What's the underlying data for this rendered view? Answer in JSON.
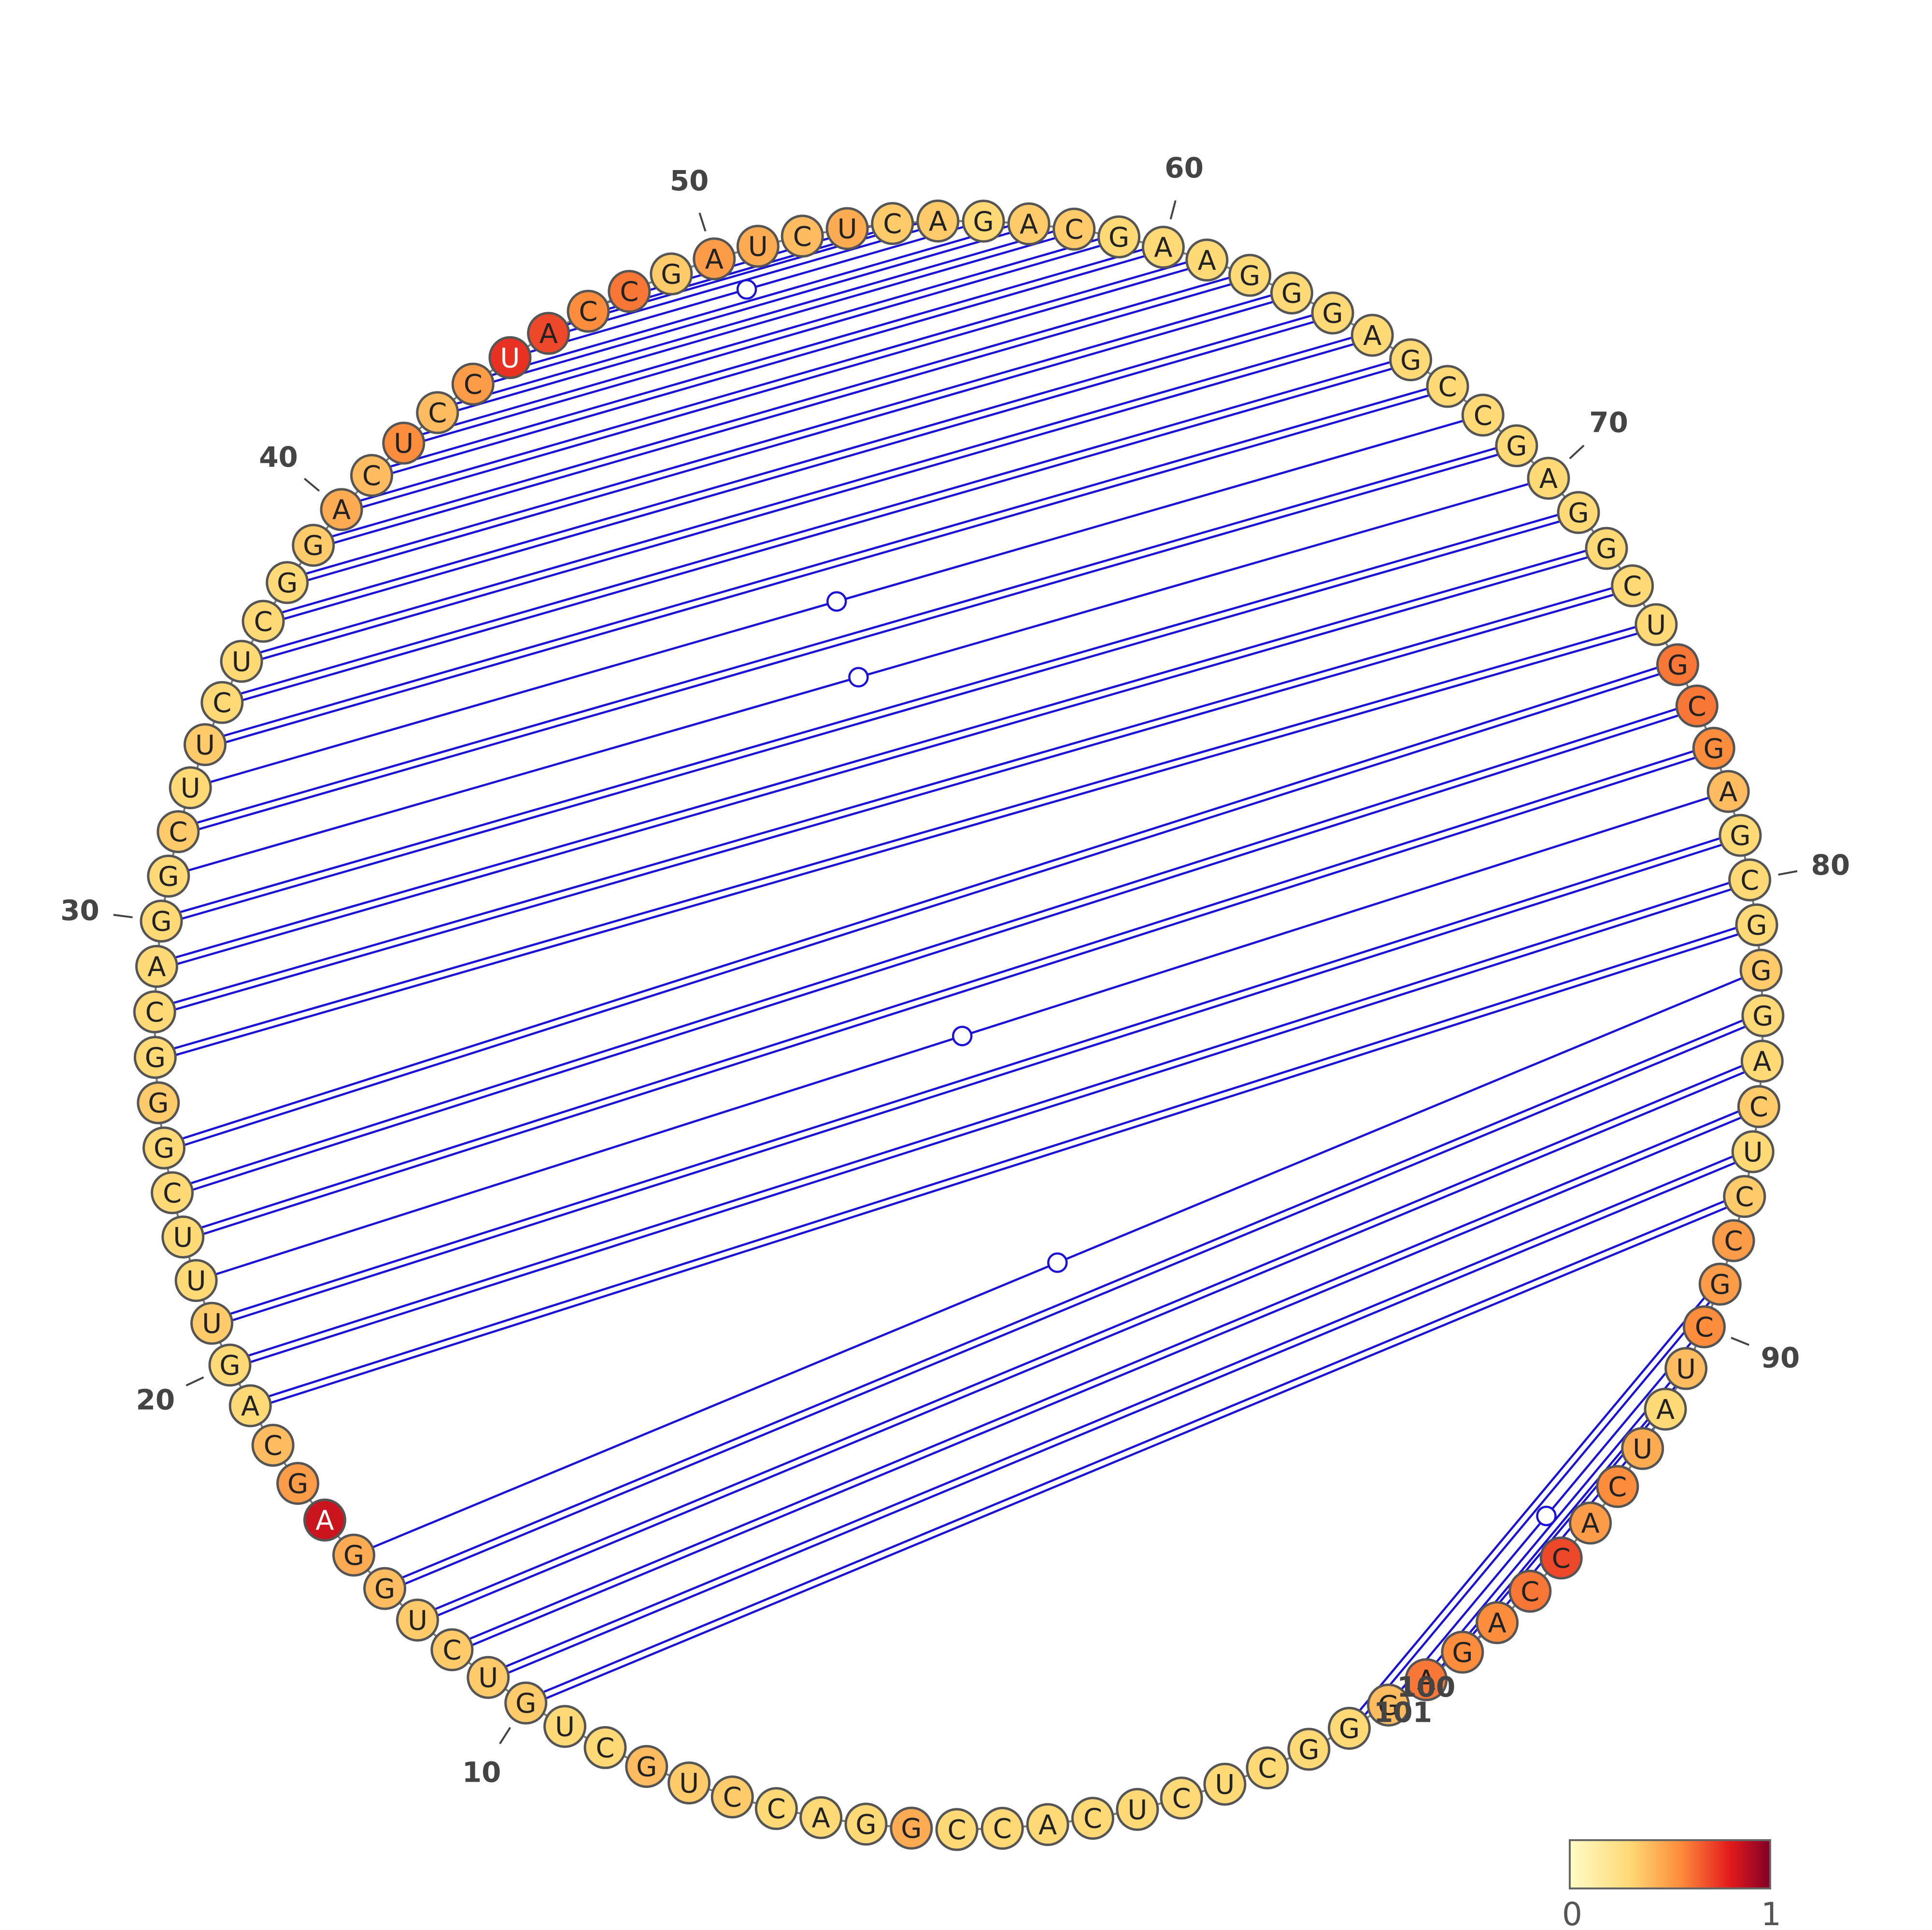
{
  "sequence": "GGACCUGCUGUCUGGAGCAGUUUCGGGCAGGCUUCUCGGACUCCUACCGAUCUCAGACGAAGGGAGCCGAGGCUGCGAGCGGGACUCCGCUAUCACCAGAGGGCUCUCACC",
  "reactivity": [
    0.45,
    0.3,
    0.3,
    0.3,
    0.35,
    0.35,
    0.4,
    0.3,
    0.3,
    0.35,
    0.35,
    0.35,
    0.35,
    0.4,
    0.45,
    0.85,
    0.5,
    0.4,
    0.3,
    0.3,
    0.35,
    0.3,
    0.3,
    0.3,
    0.3,
    0.35,
    0.3,
    0.3,
    0.3,
    0.3,
    0.3,
    0.35,
    0.3,
    0.35,
    0.3,
    0.3,
    0.3,
    0.3,
    0.35,
    0.45,
    0.4,
    0.55,
    0.4,
    0.5,
    0.75,
    0.7,
    0.55,
    0.6,
    0.35,
    0.5,
    0.45,
    0.4,
    0.45,
    0.35,
    0.35,
    0.3,
    0.35,
    0.35,
    0.3,
    0.3,
    0.3,
    0.3,
    0.3,
    0.3,
    0.3,
    0.3,
    0.3,
    0.3,
    0.3,
    0.3,
    0.3,
    0.3,
    0.3,
    0.3,
    0.6,
    0.6,
    0.55,
    0.4,
    0.3,
    0.3,
    0.3,
    0.35,
    0.3,
    0.3,
    0.35,
    0.3,
    0.35,
    0.5,
    0.5,
    0.55,
    0.4,
    0.3,
    0.45,
    0.55,
    0.5,
    0.7,
    0.6,
    0.55,
    0.55,
    0.6,
    0.4,
    0.3,
    0.3,
    0.3,
    0.3,
    0.3,
    0.3,
    0.3,
    0.3
  ],
  "pairs": [
    {
      "i": 10,
      "j": 87,
      "type": "wc"
    },
    {
      "i": 11,
      "j": 86,
      "type": "wc"
    },
    {
      "i": 12,
      "j": 85,
      "type": "wc"
    },
    {
      "i": 13,
      "j": 84,
      "type": "wc"
    },
    {
      "i": 14,
      "j": 83,
      "type": "wc"
    },
    {
      "i": 15,
      "j": 82,
      "type": "gu"
    },
    {
      "i": 19,
      "j": 81,
      "type": "wc"
    },
    {
      "i": 20,
      "j": 80,
      "type": "wc"
    },
    {
      "i": 21,
      "j": 79,
      "type": "wc"
    },
    {
      "i": 22,
      "j": 78,
      "type": "gu"
    },
    {
      "i": 23,
      "j": 77,
      "type": "wc"
    },
    {
      "i": 24,
      "j": 76,
      "type": "wc"
    },
    {
      "i": 25,
      "j": 75,
      "type": "wc"
    },
    {
      "i": 27,
      "j": 74,
      "type": "wc"
    },
    {
      "i": 28,
      "j": 73,
      "type": "wc"
    },
    {
      "i": 29,
      "j": 72,
      "type": "wc"
    },
    {
      "i": 30,
      "j": 71,
      "type": "wc"
    },
    {
      "i": 31,
      "j": 70,
      "type": "gu"
    },
    {
      "i": 32,
      "j": 69,
      "type": "wc"
    },
    {
      "i": 33,
      "j": 68,
      "type": "gu"
    },
    {
      "i": 34,
      "j": 67,
      "type": "wc"
    },
    {
      "i": 35,
      "j": 66,
      "type": "wc"
    },
    {
      "i": 36,
      "j": 65,
      "type": "wc"
    },
    {
      "i": 37,
      "j": 64,
      "type": "wc"
    },
    {
      "i": 38,
      "j": 63,
      "type": "wc"
    },
    {
      "i": 39,
      "j": 62,
      "type": "wc"
    },
    {
      "i": 40,
      "j": 61,
      "type": "wc"
    },
    {
      "i": 41,
      "j": 60,
      "type": "wc"
    },
    {
      "i": 42,
      "j": 59,
      "type": "wc"
    },
    {
      "i": 43,
      "j": 58,
      "type": "wc"
    },
    {
      "i": 44,
      "j": 57,
      "type": "wc"
    },
    {
      "i": 45,
      "j": 56,
      "type": "gu"
    },
    {
      "i": 46,
      "j": 55,
      "type": "wc"
    },
    {
      "i": 47,
      "j": 54,
      "type": "wc"
    },
    {
      "i": 92,
      "j": 99,
      "type": "wc"
    },
    {
      "i": 91,
      "j": 100,
      "type": "wc"
    },
    {
      "i": 90,
      "j": 101,
      "type": "gu"
    },
    {
      "i": 89,
      "j": 102,
      "type": "wc"
    }
  ],
  "position_labels": [
    "10",
    "20",
    "30",
    "40",
    "50",
    "60",
    "70",
    "80",
    "90",
    "100",
    "101"
  ],
  "colorbar": {
    "min_label": "0",
    "max_label": "1",
    "colors": [
      "#fffbc7",
      "#fed976",
      "#fd8d3c",
      "#e31a1c",
      "#800026"
    ]
  },
  "colors": {
    "pair_line": "#1a12d6",
    "node_stroke": "#555555",
    "label": "#444444"
  }
}
